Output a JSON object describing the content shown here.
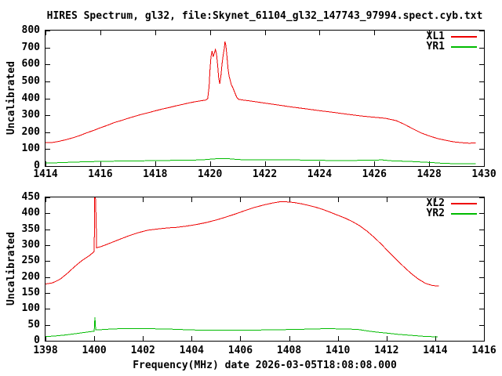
{
  "title": "HIRES Spectrum, gl32, file:Skynet_61104_gl32_147743_97994.spect.cyb.txt",
  "colors": {
    "red": "#ee0000",
    "green": "#00bb00",
    "axis": "#000000",
    "background": "#ffffff"
  },
  "chart_data": {
    "type": "line",
    "grid": false,
    "panels": [
      {
        "ylabel": "Uncalibrated",
        "x_range": [
          1414,
          1430
        ],
        "y_range": [
          0,
          800
        ],
        "x_ticks": [
          1414,
          1416,
          1418,
          1420,
          1422,
          1424,
          1426,
          1428,
          1430
        ],
        "y_ticks": [
          0,
          100,
          200,
          300,
          400,
          500,
          600,
          700,
          800
        ],
        "legend_position": "top-right",
        "series": [
          {
            "name": "XL1",
            "color": "#ee0000",
            "points": [
              [
                1414.0,
                138
              ],
              [
                1414.25,
                139
              ],
              [
                1414.5,
                146
              ],
              [
                1414.75,
                156
              ],
              [
                1415.0,
                167
              ],
              [
                1415.25,
                180
              ],
              [
                1415.5,
                196
              ],
              [
                1415.75,
                210
              ],
              [
                1416.0,
                226
              ],
              [
                1416.25,
                240
              ],
              [
                1416.5,
                256
              ],
              [
                1416.75,
                268
              ],
              [
                1417.0,
                281
              ],
              [
                1417.25,
                293
              ],
              [
                1417.5,
                305
              ],
              [
                1417.75,
                315
              ],
              [
                1418.0,
                326
              ],
              [
                1418.25,
                336
              ],
              [
                1418.5,
                345
              ],
              [
                1418.75,
                355
              ],
              [
                1419.0,
                364
              ],
              [
                1419.25,
                373
              ],
              [
                1419.5,
                381
              ],
              [
                1419.7,
                386
              ],
              [
                1419.85,
                390
              ],
              [
                1419.92,
                398
              ],
              [
                1419.97,
                470
              ],
              [
                1420.0,
                560
              ],
              [
                1420.04,
                645
              ],
              [
                1420.08,
                680
              ],
              [
                1420.12,
                645
              ],
              [
                1420.16,
                665
              ],
              [
                1420.2,
                688
              ],
              [
                1420.24,
                665
              ],
              [
                1420.28,
                600
              ],
              [
                1420.32,
                520
              ],
              [
                1420.36,
                487
              ],
              [
                1420.4,
                530
              ],
              [
                1420.44,
                600
              ],
              [
                1420.48,
                650
              ],
              [
                1420.52,
                690
              ],
              [
                1420.55,
                735
              ],
              [
                1420.58,
                715
              ],
              [
                1420.62,
                650
              ],
              [
                1420.66,
                575
              ],
              [
                1420.7,
                530
              ],
              [
                1420.74,
                507
              ],
              [
                1420.78,
                480
              ],
              [
                1420.83,
                465
              ],
              [
                1420.88,
                445
              ],
              [
                1420.93,
                425
              ],
              [
                1420.98,
                405
              ],
              [
                1421.05,
                394
              ],
              [
                1421.2,
                390
              ],
              [
                1421.5,
                384
              ],
              [
                1422.0,
                372
              ],
              [
                1422.5,
                360
              ],
              [
                1423.0,
                348
              ],
              [
                1423.5,
                338
              ],
              [
                1424.0,
                327
              ],
              [
                1424.5,
                317
              ],
              [
                1425.0,
                306
              ],
              [
                1425.5,
                296
              ],
              [
                1426.0,
                288
              ],
              [
                1426.4,
                282
              ],
              [
                1426.8,
                268
              ],
              [
                1427.1,
                246
              ],
              [
                1427.4,
                220
              ],
              [
                1427.7,
                196
              ],
              [
                1428.0,
                178
              ],
              [
                1428.3,
                163
              ],
              [
                1428.6,
                152
              ],
              [
                1428.9,
                143
              ],
              [
                1429.2,
                138
              ],
              [
                1429.45,
                135
              ],
              [
                1429.7,
                136
              ]
            ]
          },
          {
            "name": "YR1",
            "color": "#00bb00",
            "points": [
              [
                1414.0,
                18
              ],
              [
                1414.5,
                20
              ],
              [
                1415.0,
                23
              ],
              [
                1415.6,
                26
              ],
              [
                1416.2,
                28
              ],
              [
                1417.0,
                30
              ],
              [
                1418.0,
                32
              ],
              [
                1418.8,
                34
              ],
              [
                1419.6,
                36
              ],
              [
                1419.9,
                39
              ],
              [
                1420.1,
                42
              ],
              [
                1420.35,
                44
              ],
              [
                1420.6,
                44
              ],
              [
                1420.8,
                42
              ],
              [
                1421.0,
                39
              ],
              [
                1421.3,
                37
              ],
              [
                1422.0,
                37
              ],
              [
                1423.0,
                36
              ],
              [
                1424.0,
                35
              ],
              [
                1424.4,
                32
              ],
              [
                1425.2,
                33
              ],
              [
                1425.8,
                35
              ],
              [
                1426.3,
                36
              ],
              [
                1426.7,
                30
              ],
              [
                1427.2,
                28
              ],
              [
                1427.7,
                24
              ],
              [
                1428.1,
                21
              ],
              [
                1428.5,
                16
              ],
              [
                1429.0,
                14
              ],
              [
                1429.7,
                13
              ]
            ]
          }
        ]
      },
      {
        "ylabel": "Uncalibrated",
        "xlabel": "Frequency(MHz) date 2026-03-05T18:08:08.000",
        "x_range": [
          1398,
          1416
        ],
        "y_range": [
          0,
          450
        ],
        "x_ticks": [
          1398,
          1400,
          1402,
          1404,
          1406,
          1408,
          1410,
          1412,
          1414,
          1416
        ],
        "y_ticks": [
          0,
          50,
          100,
          150,
          200,
          250,
          300,
          350,
          400,
          450
        ],
        "legend_position": "top-right",
        "series": [
          {
            "name": "XL2",
            "color": "#ee0000",
            "points": [
              [
                1398.0,
                178
              ],
              [
                1398.3,
                182
              ],
              [
                1398.6,
                193
              ],
              [
                1398.9,
                212
              ],
              [
                1399.2,
                233
              ],
              [
                1399.5,
                252
              ],
              [
                1399.8,
                267
              ],
              [
                1400.0,
                280
              ],
              [
                1400.02,
                450
              ],
              [
                1400.05,
                450
              ],
              [
                1400.08,
                375
              ],
              [
                1400.1,
                292
              ],
              [
                1400.3,
                296
              ],
              [
                1400.6,
                305
              ],
              [
                1401.0,
                317
              ],
              [
                1401.4,
                329
              ],
              [
                1401.8,
                339
              ],
              [
                1402.2,
                347
              ],
              [
                1402.6,
                351
              ],
              [
                1403.0,
                354
              ],
              [
                1403.4,
                356
              ],
              [
                1403.8,
                360
              ],
              [
                1404.2,
                365
              ],
              [
                1404.6,
                371
              ],
              [
                1405.0,
                379
              ],
              [
                1405.4,
                388
              ],
              [
                1405.8,
                398
              ],
              [
                1406.2,
                409
              ],
              [
                1406.6,
                419
              ],
              [
                1407.0,
                427
              ],
              [
                1407.3,
                432
              ],
              [
                1407.6,
                436
              ],
              [
                1407.9,
                436
              ],
              [
                1408.2,
                434
              ],
              [
                1408.5,
                430
              ],
              [
                1408.8,
                425
              ],
              [
                1409.1,
                419
              ],
              [
                1409.4,
                412
              ],
              [
                1409.7,
                403
              ],
              [
                1410.0,
                394
              ],
              [
                1410.3,
                385
              ],
              [
                1410.6,
                374
              ],
              [
                1410.9,
                361
              ],
              [
                1411.2,
                344
              ],
              [
                1411.5,
                324
              ],
              [
                1411.8,
                302
              ],
              [
                1412.1,
                278
              ],
              [
                1412.4,
                255
              ],
              [
                1412.7,
                233
              ],
              [
                1413.0,
                212
              ],
              [
                1413.3,
                194
              ],
              [
                1413.6,
                180
              ],
              [
                1413.9,
                173
              ],
              [
                1414.15,
                172
              ]
            ]
          },
          {
            "name": "YR2",
            "color": "#00bb00",
            "points": [
              [
                1398.0,
                13
              ],
              [
                1398.4,
                15
              ],
              [
                1398.8,
                18
              ],
              [
                1399.2,
                22
              ],
              [
                1399.6,
                26
              ],
              [
                1399.9,
                29
              ],
              [
                1400.0,
                30
              ],
              [
                1400.03,
                74
              ],
              [
                1400.06,
                34
              ],
              [
                1400.3,
                35
              ],
              [
                1400.7,
                37
              ],
              [
                1401.2,
                38
              ],
              [
                1402.0,
                38
              ],
              [
                1403.0,
                37
              ],
              [
                1404.0,
                34
              ],
              [
                1405.0,
                33
              ],
              [
                1406.0,
                33
              ],
              [
                1407.0,
                34
              ],
              [
                1407.8,
                35
              ],
              [
                1408.4,
                36
              ],
              [
                1409.0,
                37
              ],
              [
                1409.6,
                38
              ],
              [
                1410.2,
                37
              ],
              [
                1410.8,
                36
              ],
              [
                1411.2,
                31
              ],
              [
                1411.6,
                27
              ],
              [
                1412.0,
                24
              ],
              [
                1412.5,
                20
              ],
              [
                1413.0,
                17
              ],
              [
                1413.5,
                14
              ],
              [
                1414.1,
                12
              ]
            ]
          }
        ]
      }
    ]
  }
}
